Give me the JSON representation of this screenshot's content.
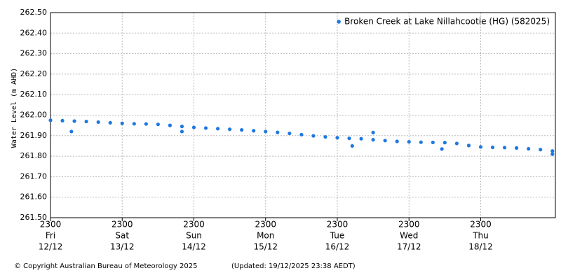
{
  "chart_data": {
    "type": "scatter",
    "y_label": "Water Level (m AHD)",
    "legend_position": "top-right",
    "grid": true,
    "footer": "© Copyright Australian Bureau of Meteorology 2025",
    "updated": "(Updated: 19/12/2025 23:38 AEDT)",
    "xlim": [
      "12/12 2300",
      "20/12 0000"
    ],
    "xticks": [
      {
        "value": "12/12 2300",
        "label": [
          "2300",
          "Fri",
          "12/12"
        ]
      },
      {
        "value": "13/12 2300",
        "label": [
          "2300",
          "Sat",
          "13/12"
        ]
      },
      {
        "value": "14/12 2300",
        "label": [
          "2300",
          "Sun",
          "14/12"
        ]
      },
      {
        "value": "15/12 2300",
        "label": [
          "2300",
          "Mon",
          "15/12"
        ]
      },
      {
        "value": "16/12 2300",
        "label": [
          "2300",
          "Tue",
          "16/12"
        ]
      },
      {
        "value": "17/12 2300",
        "label": [
          "2300",
          "Wed",
          "17/12"
        ]
      },
      {
        "value": "18/12 2300",
        "label": [
          "2300",
          "Thu",
          "18/12"
        ]
      }
    ],
    "ylim": [
      261.5,
      262.5
    ],
    "yticks": [
      {
        "value": 261.5,
        "label": "261.50"
      },
      {
        "value": 261.6,
        "label": "261.60"
      },
      {
        "value": 261.7,
        "label": "261.70"
      },
      {
        "value": 261.8,
        "label": "261.80"
      },
      {
        "value": 261.9,
        "label": "261.90"
      },
      {
        "value": 262.0,
        "label": "262.00"
      },
      {
        "value": 262.1,
        "label": "262.10"
      },
      {
        "value": 262.2,
        "label": "262.20"
      },
      {
        "value": 262.3,
        "label": "262.30"
      },
      {
        "value": 262.4,
        "label": "262.40"
      },
      {
        "value": 262.5,
        "label": "262.50"
      }
    ],
    "x": [
      "12/12 2300",
      "13/12 0300",
      "13/12 0700",
      "13/12 1100",
      "13/12 1500",
      "13/12 1900",
      "13/12 2300",
      "14/12 0300",
      "14/12 0700",
      "14/12 1100",
      "14/12 1500",
      "14/12 1900",
      "14/12 2300",
      "15/12 0300",
      "15/12 0700",
      "15/12 1100",
      "15/12 1500",
      "15/12 1900",
      "15/12 2300",
      "16/12 0300",
      "16/12 0700",
      "16/12 1100",
      "16/12 1500",
      "16/12 1900",
      "16/12 2300",
      "17/12 0300",
      "17/12 0700",
      "17/12 1100",
      "17/12 1500",
      "17/12 1900",
      "17/12 2300",
      "18/12 0300",
      "18/12 0700",
      "18/12 1100",
      "18/12 1500",
      "18/12 1900",
      "18/12 2300",
      "19/12 0300",
      "19/12 0700",
      "19/12 1100",
      "19/12 1500",
      "19/12 1900",
      "19/12 2300",
      "13/12 0600",
      "14/12 1900",
      "17/12 0400",
      "17/12 1100",
      "18/12 1000",
      "19/12 2300"
    ],
    "series": [
      {
        "name": "Broken Creek  at Lake Nillahcootie (HG) (582025)",
        "color": "#1f78e0",
        "values": [
          261.975,
          261.973,
          261.971,
          261.969,
          261.966,
          261.963,
          261.96,
          261.958,
          261.957,
          261.955,
          261.95,
          261.945,
          261.94,
          261.937,
          261.934,
          261.931,
          261.928,
          261.924,
          261.92,
          261.916,
          261.911,
          261.905,
          261.899,
          261.894,
          261.89,
          261.887,
          261.885,
          261.88,
          261.876,
          261.872,
          261.87,
          261.868,
          261.867,
          261.866,
          261.862,
          261.852,
          261.845,
          261.843,
          261.842,
          261.84,
          261.836,
          261.832,
          261.825,
          261.92,
          261.92,
          261.85,
          261.915,
          261.835,
          261.81
        ]
      }
    ]
  }
}
